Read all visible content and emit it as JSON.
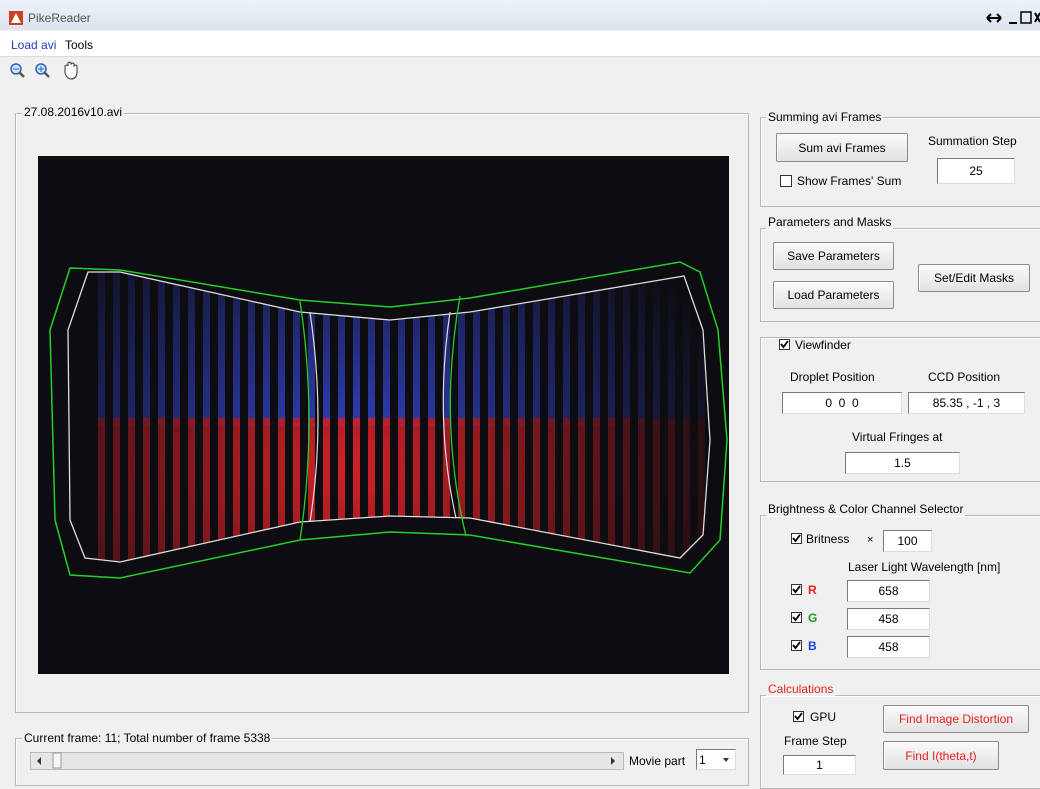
{
  "window": {
    "title": "PikeReader"
  },
  "menu": [
    "Load avi",
    "Tools"
  ],
  "image_panel": {
    "title": "27.08.2016v10.avi"
  },
  "summing": {
    "title": "Summing avi Frames",
    "sum_button": "Sum avi Frames",
    "show_sum": "Show Frames' Sum",
    "step_label": "Summation Step",
    "step_value": "25"
  },
  "parameters": {
    "title": "Parameters and Masks",
    "save": "Save Parameters",
    "load": "Load Parameters",
    "masks": "Set/Edit Masks"
  },
  "viewfinder": {
    "checkbox": "Viewfinder",
    "droplet_label": "Droplet Position",
    "droplet_value": "0  0  0",
    "ccd_label": "CCD Position",
    "ccd_value": "85.35 , -1 , 3",
    "fringes_label": "Virtual Fringes at",
    "fringes_value": "1.5"
  },
  "brightness": {
    "title": "Brightness & Color Channel Selector",
    "checkbox": "Britness",
    "multiplier": "×",
    "value": "100",
    "wavelength_label": "Laser Light Wavelength [nm]",
    "channels": [
      {
        "name": "R",
        "value": "658"
      },
      {
        "name": "G",
        "value": "458"
      },
      {
        "name": "B",
        "value": "458"
      }
    ]
  },
  "calculations": {
    "title": "Calculations",
    "gpu": "GPU",
    "frame_step_label": "Frame Step",
    "frame_step_value": "1",
    "distortion": "Find Image Distortion",
    "intensity": "Find I(theta,t)"
  },
  "playback": {
    "status": "Current frame: 11; Total number of frame 5338",
    "movie_part_label": "Movie part",
    "movie_part_value": "1"
  }
}
